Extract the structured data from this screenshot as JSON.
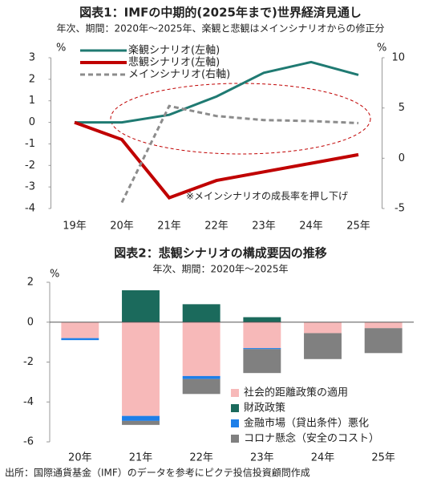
{
  "chart_data": [
    {
      "type": "line",
      "title": "図表1：IMFの中期的(2025年まで)世界経済見通し",
      "subtitle": "年次、期間：2020年～2025年、楽観と悲観はメインシナリオからの修正分",
      "annotation": "※メインシナリオの成長率を押し下げ",
      "y_unit": "%",
      "y2_unit": "%",
      "categories": [
        "19年",
        "20年",
        "21年",
        "22年",
        "23年",
        "24年",
        "25年"
      ],
      "series": [
        {
          "name": "楽観シナリオ(左軸)",
          "color": "#1f7a72",
          "values": [
            0,
            0,
            0.35,
            1.2,
            2.3,
            2.8,
            2.2
          ]
        },
        {
          "name": "悲観シナリオ(左軸)",
          "color": "#c00000",
          "values": [
            0,
            -0.8,
            -3.5,
            -2.7,
            -2.3,
            -1.9,
            -1.5
          ]
        },
        {
          "name": "メインシナリオ(右軸)",
          "color": "#8c8c8c",
          "axis": "y2",
          "values": [
            null,
            -4.4,
            5.2,
            4.2,
            3.8,
            3.7,
            3.5
          ]
        }
      ],
      "ylim": [
        -4,
        3
      ],
      "yticks": [
        -4,
        -3,
        -2,
        -1,
        0,
        1,
        2,
        3
      ],
      "y2lim": [
        -5,
        10
      ],
      "y2ticks": [
        -5,
        0,
        5,
        10
      ],
      "legend": "top-left"
    },
    {
      "type": "stacked-bar",
      "title": "図表2：悲観シナリオの構成要因の推移",
      "subtitle": "年次、期間：2020年～2025年",
      "y_unit": "%",
      "categories": [
        "20年",
        "21年",
        "22年",
        "23年",
        "24年",
        "25年"
      ],
      "series": [
        {
          "name": "社会的距離政策の適用",
          "color": "#f7b9b9",
          "values": [
            -0.8,
            -4.7,
            -2.7,
            -1.3,
            -0.55,
            -0.3
          ]
        },
        {
          "name": "財政政策",
          "color": "#1b6a5c",
          "values": [
            0,
            1.6,
            0.9,
            0.25,
            0,
            0
          ]
        },
        {
          "name": "金融市場（貸出条件）悪化",
          "color": "#1e7fe8",
          "values": [
            -0.1,
            -0.25,
            -0.15,
            -0.05,
            0,
            0
          ]
        },
        {
          "name": "コロナ懸念（安全のコスト）",
          "color": "#808080",
          "values": [
            0,
            -0.2,
            -0.75,
            -1.2,
            -1.3,
            -1.25
          ]
        }
      ],
      "ylim": [
        -6,
        2
      ],
      "yticks": [
        -6,
        -4,
        -2,
        0,
        2
      ],
      "legend": "bottom-right"
    }
  ],
  "source": "出所：国際通貨基金（IMF）のデータを参考にピクテ投信投資顧問作成"
}
